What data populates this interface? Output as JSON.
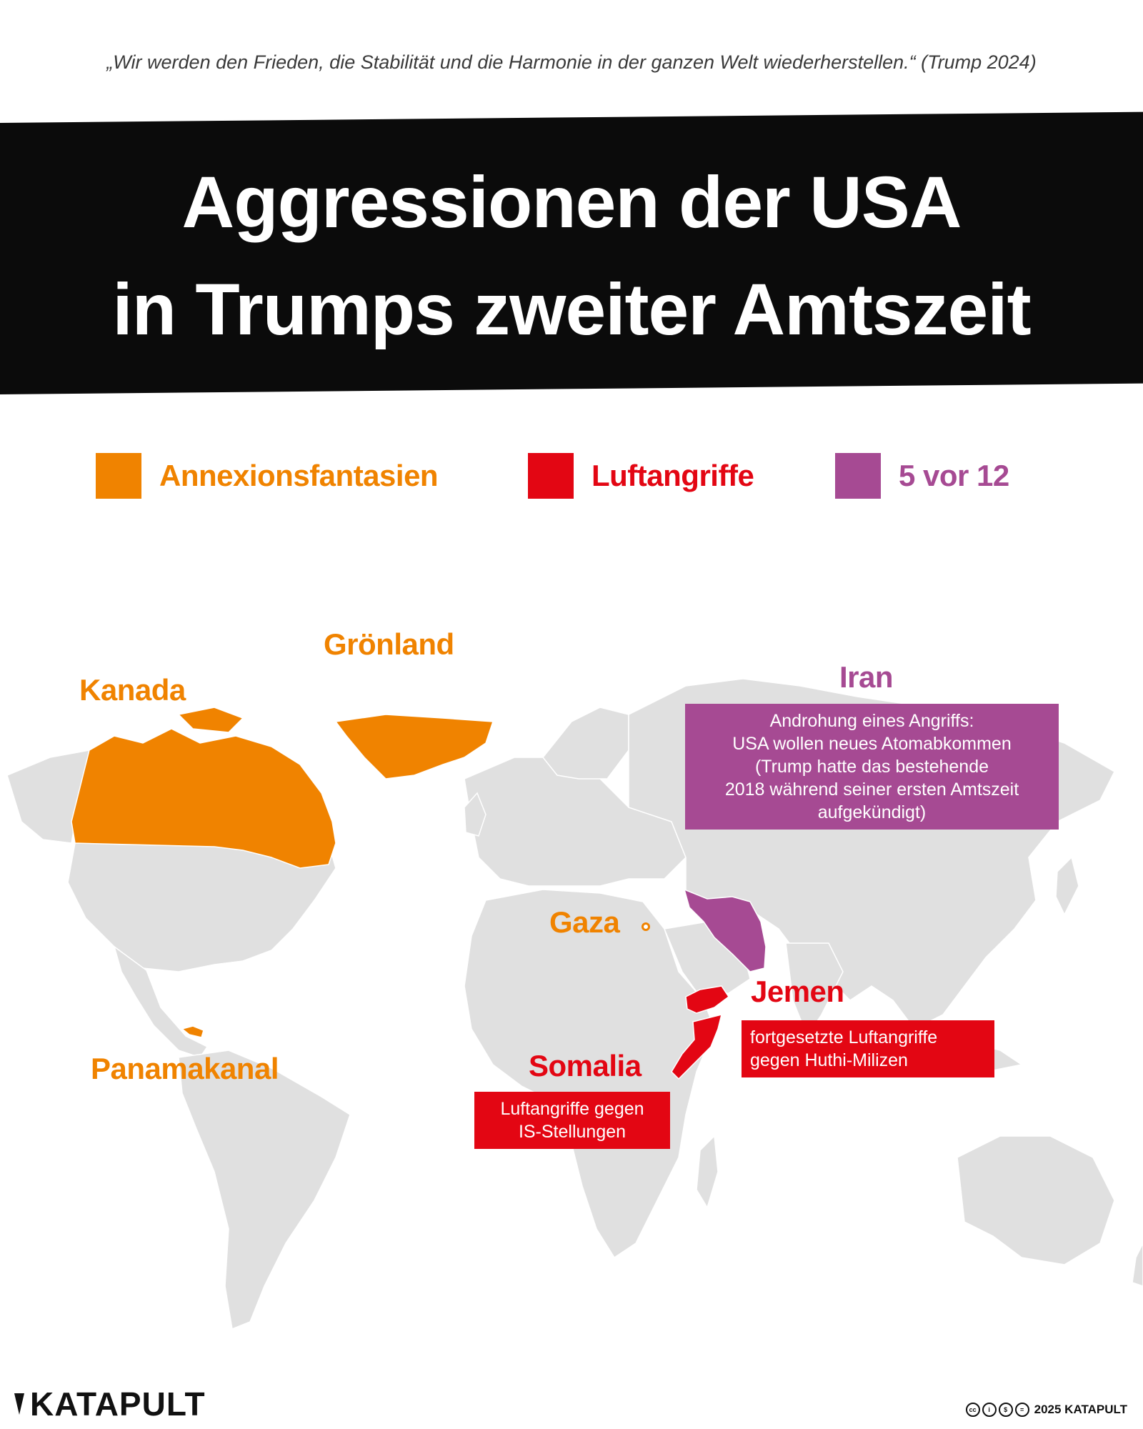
{
  "quote": "„Wir werden den Frieden, die Stabilität und die Harmonie in der ganzen Welt wiederherstellen.“ (Trump 2024)",
  "title": {
    "line1": "Aggressionen der USA",
    "line2": "in Trumps zweiter Amtszeit"
  },
  "colors": {
    "annexation": "#f08300",
    "airstrikes": "#e30613",
    "warning": "#a64a93",
    "land": "#e0e0e0",
    "title_band": "#0b0b0b"
  },
  "legend": [
    {
      "label": "Annexionsfantasien",
      "color": "#f08300"
    },
    {
      "label": "Luftangriffe",
      "color": "#e30613"
    },
    {
      "label": "5 vor 12",
      "color": "#a64a93"
    }
  ],
  "places": {
    "greenland": "Grönland",
    "canada": "Kanada",
    "gaza": "Gaza",
    "panama": "Panamakanal",
    "iran": "Iran",
    "yemen": "Jemen",
    "somalia": "Somalia"
  },
  "boxes": {
    "iran_lines": [
      "Androhung eines Angriffs:",
      "USA wollen neues Atomabkommen",
      "(Trump hatte das bestehende",
      "2018 während seiner ersten Amtszeit",
      "aufgekündigt)"
    ],
    "yemen_lines": [
      "fortgesetzte Luftangriffe",
      "gegen Huthi-Milizen"
    ],
    "somalia_lines": [
      "Luftangriffe gegen",
      "IS-Stellungen"
    ]
  },
  "footer": {
    "brand": "KATAPULT",
    "copyright": "2025 KATAPULT"
  }
}
